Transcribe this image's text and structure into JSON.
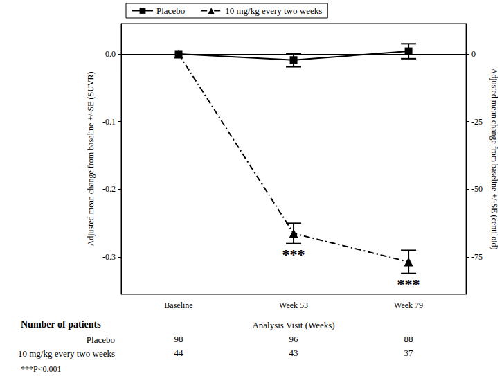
{
  "chart_data": {
    "type": "line",
    "xlabel": "Analysis Visit (Weeks)",
    "ylabel": "Adjusted mean change from baseline +/-SE (SUVR)",
    "y2label": "Adjusted mean change from baseline +/-SE (centiloid)",
    "categories": [
      "Baseline",
      "Week 53",
      "Week 79"
    ],
    "series": [
      {
        "name": "Placebo",
        "color": "#000000",
        "marker": "square",
        "line_style": "solid",
        "values": [
          0,
          -0.009,
          0.004
        ],
        "se": [
          0,
          0.01,
          0.011
        ]
      },
      {
        "name": "10 mg/kg every two weeks",
        "color": "#000000",
        "marker": "triangle",
        "line_style": "dashdot",
        "values": [
          0,
          -0.265,
          -0.307
        ],
        "se": [
          0,
          0.015,
          0.017
        ]
      }
    ],
    "ylim": [
      -0.355,
      0.045
    ],
    "yticks": [
      {
        "value": 0,
        "label": "0.0"
      },
      -0.1,
      -0.2,
      -0.3
    ],
    "y2lim": [
      -88.75,
      11.25
    ],
    "y2ticks": [
      0,
      -25,
      -50,
      -75
    ],
    "legend": "upper left",
    "grid": false,
    "annotations": [
      {
        "series": "10 mg/kg every two weeks",
        "category": "Week 53",
        "text": "***"
      },
      {
        "series": "10 mg/kg every two weeks",
        "category": "Week 79",
        "text": "***"
      }
    ],
    "table": {
      "title": "Number of patients",
      "rows": [
        {
          "label": "Placebo",
          "values": [
            98,
            96,
            88
          ]
        },
        {
          "label": "10 mg/kg every two weeks",
          "values": [
            44,
            43,
            37
          ]
        }
      ]
    },
    "footnote": "***P<0.001"
  }
}
